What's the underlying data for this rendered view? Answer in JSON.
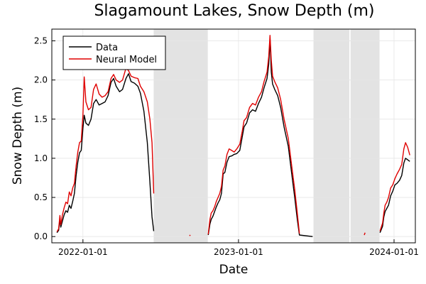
{
  "chart_data": {
    "type": "line",
    "title": "Slagamount Lakes, Snow Depth (m)",
    "xlabel": "Date",
    "ylabel": "Snow Depth (m)",
    "xlim": [
      "2021-10-20",
      "2024-02-20"
    ],
    "ylim": [
      -0.08,
      2.65
    ],
    "x_ticks": [
      "2022-01-01",
      "2023-01-01",
      "2024-01-01"
    ],
    "y_ticks": [
      "0.0",
      "0.5",
      "1.0",
      "1.5",
      "2.0",
      "2.5"
    ],
    "grid": true,
    "legend_position": "top-left",
    "shaded_regions": [
      [
        "2022-06-16",
        "2022-10-21"
      ],
      [
        "2023-06-26",
        "2023-09-18"
      ],
      [
        "2023-09-21",
        "2023-11-28"
      ]
    ],
    "series": [
      {
        "name": "Data",
        "color": "#000000",
        "segments": [
          [
            [
              "2021-11-01",
              0.05
            ],
            [
              "2021-11-05",
              0.08
            ],
            [
              "2021-11-08",
              0.22
            ],
            [
              "2021-11-10",
              0.12
            ],
            [
              "2021-11-14",
              0.2
            ],
            [
              "2021-11-18",
              0.28
            ],
            [
              "2021-11-22",
              0.33
            ],
            [
              "2021-11-26",
              0.31
            ],
            [
              "2021-11-30",
              0.4
            ],
            [
              "2021-12-04",
              0.36
            ],
            [
              "2021-12-08",
              0.45
            ],
            [
              "2021-12-12",
              0.55
            ],
            [
              "2021-12-16",
              0.78
            ],
            [
              "2021-12-20",
              0.95
            ],
            [
              "2021-12-24",
              1.07
            ],
            [
              "2021-12-28",
              1.1
            ],
            [
              "2022-01-01",
              1.38
            ],
            [
              "2022-01-04",
              1.55
            ],
            [
              "2022-01-08",
              1.45
            ],
            [
              "2022-01-14",
              1.42
            ],
            [
              "2022-01-20",
              1.5
            ],
            [
              "2022-01-26",
              1.7
            ],
            [
              "2022-02-01",
              1.75
            ],
            [
              "2022-02-08",
              1.68
            ],
            [
              "2022-02-15",
              1.7
            ],
            [
              "2022-02-22",
              1.72
            ],
            [
              "2022-03-01",
              1.8
            ],
            [
              "2022-03-08",
              1.97
            ],
            [
              "2022-03-14",
              2.02
            ],
            [
              "2022-03-20",
              1.92
            ],
            [
              "2022-03-28",
              1.85
            ],
            [
              "2022-04-04",
              1.88
            ],
            [
              "2022-04-12",
              2.02
            ],
            [
              "2022-04-18",
              2.08
            ],
            [
              "2022-04-24",
              1.98
            ],
            [
              "2022-05-02",
              1.96
            ],
            [
              "2022-05-10",
              1.92
            ],
            [
              "2022-05-16",
              1.83
            ],
            [
              "2022-05-24",
              1.6
            ],
            [
              "2022-06-01",
              1.2
            ],
            [
              "2022-06-07",
              0.7
            ],
            [
              "2022-06-12",
              0.25
            ],
            [
              "2022-06-16",
              0.07
            ]
          ],
          [
            [
              "2022-10-22",
              0.02
            ],
            [
              "2022-10-26",
              0.16
            ],
            [
              "2022-10-29",
              0.22
            ],
            [
              "2022-11-02",
              0.26
            ],
            [
              "2022-11-06",
              0.32
            ],
            [
              "2022-11-10",
              0.38
            ],
            [
              "2022-11-14",
              0.43
            ],
            [
              "2022-11-18",
              0.47
            ],
            [
              "2022-11-22",
              0.55
            ],
            [
              "2022-11-26",
              0.8
            ],
            [
              "2022-11-30",
              0.82
            ],
            [
              "2022-12-05",
              0.95
            ],
            [
              "2022-12-10",
              1.02
            ],
            [
              "2022-12-16",
              1.03
            ],
            [
              "2022-12-22",
              1.05
            ],
            [
              "2022-12-28",
              1.06
            ],
            [
              "2023-01-04",
              1.1
            ],
            [
              "2023-01-10",
              1.28
            ],
            [
              "2023-01-14",
              1.4
            ],
            [
              "2023-01-20",
              1.45
            ],
            [
              "2023-01-27",
              1.58
            ],
            [
              "2023-02-03",
              1.62
            ],
            [
              "2023-02-10",
              1.6
            ],
            [
              "2023-02-17",
              1.7
            ],
            [
              "2023-02-24",
              1.78
            ],
            [
              "2023-03-02",
              1.9
            ],
            [
              "2023-03-09",
              2.02
            ],
            [
              "2023-03-13",
              2.2
            ],
            [
              "2023-03-16",
              2.52
            ],
            [
              "2023-03-19",
              2.1
            ],
            [
              "2023-03-22",
              1.95
            ],
            [
              "2023-03-27",
              1.88
            ],
            [
              "2023-04-03",
              1.8
            ],
            [
              "2023-04-10",
              1.65
            ],
            [
              "2023-04-18",
              1.4
            ],
            [
              "2023-04-28",
              1.15
            ],
            [
              "2023-05-06",
              0.8
            ],
            [
              "2023-05-13",
              0.5
            ],
            [
              "2023-05-19",
              0.22
            ],
            [
              "2023-05-24",
              0.02
            ],
            [
              "2023-06-24",
              0.0
            ]
          ],
          [
            [
              "2023-11-29",
              0.05
            ],
            [
              "2023-12-02",
              0.09
            ],
            [
              "2023-12-05",
              0.13
            ],
            [
              "2023-12-08",
              0.25
            ],
            [
              "2023-12-11",
              0.32
            ],
            [
              "2023-12-15",
              0.36
            ],
            [
              "2023-12-19",
              0.4
            ],
            [
              "2023-12-24",
              0.52
            ],
            [
              "2023-12-29",
              0.58
            ],
            [
              "2024-01-03",
              0.66
            ],
            [
              "2024-01-08",
              0.68
            ],
            [
              "2024-01-14",
              0.72
            ],
            [
              "2024-01-19",
              0.78
            ],
            [
              "2024-01-24",
              0.94
            ],
            [
              "2024-01-28",
              1.0
            ],
            [
              "2024-02-02",
              0.98
            ],
            [
              "2024-02-07",
              0.96
            ]
          ]
        ]
      },
      {
        "name": "Neural Model",
        "color": "#e00000",
        "segments": [
          [
            [
              "2021-11-01",
              0.06
            ],
            [
              "2021-11-05",
              0.1
            ],
            [
              "2021-11-08",
              0.27
            ],
            [
              "2021-11-10",
              0.15
            ],
            [
              "2021-11-14",
              0.28
            ],
            [
              "2021-11-18",
              0.37
            ],
            [
              "2021-11-22",
              0.44
            ],
            [
              "2021-11-26",
              0.42
            ],
            [
              "2021-11-30",
              0.57
            ],
            [
              "2021-12-04",
              0.52
            ],
            [
              "2021-12-08",
              0.62
            ],
            [
              "2021-12-12",
              0.68
            ],
            [
              "2021-12-16",
              0.9
            ],
            [
              "2021-12-20",
              1.08
            ],
            [
              "2021-12-24",
              1.2
            ],
            [
              "2021-12-28",
              1.22
            ],
            [
              "2022-01-01",
              1.55
            ],
            [
              "2022-01-04",
              2.04
            ],
            [
              "2022-01-08",
              1.72
            ],
            [
              "2022-01-14",
              1.62
            ],
            [
              "2022-01-20",
              1.65
            ],
            [
              "2022-01-26",
              1.88
            ],
            [
              "2022-02-01",
              1.95
            ],
            [
              "2022-02-08",
              1.82
            ],
            [
              "2022-02-15",
              1.78
            ],
            [
              "2022-02-22",
              1.8
            ],
            [
              "2022-03-01",
              1.85
            ],
            [
              "2022-03-08",
              2.02
            ],
            [
              "2022-03-14",
              2.07
            ],
            [
              "2022-03-20",
              2.0
            ],
            [
              "2022-03-28",
              1.97
            ],
            [
              "2022-04-04",
              2.0
            ],
            [
              "2022-04-12",
              2.15
            ],
            [
              "2022-04-18",
              2.12
            ],
            [
              "2022-04-24",
              2.05
            ],
            [
              "2022-05-02",
              2.03
            ],
            [
              "2022-05-10",
              2.02
            ],
            [
              "2022-05-16",
              1.92
            ],
            [
              "2022-05-24",
              1.85
            ],
            [
              "2022-06-01",
              1.72
            ],
            [
              "2022-06-07",
              1.5
            ],
            [
              "2022-06-12",
              1.2
            ],
            [
              "2022-06-16",
              0.55
            ]
          ],
          [
            [
              "2022-10-22",
              0.03
            ],
            [
              "2022-10-26",
              0.22
            ],
            [
              "2022-10-29",
              0.3
            ],
            [
              "2022-11-02",
              0.33
            ],
            [
              "2022-11-06",
              0.38
            ],
            [
              "2022-11-10",
              0.45
            ],
            [
              "2022-11-14",
              0.5
            ],
            [
              "2022-11-18",
              0.55
            ],
            [
              "2022-11-22",
              0.64
            ],
            [
              "2022-11-26",
              0.85
            ],
            [
              "2022-11-30",
              0.9
            ],
            [
              "2022-12-05",
              1.05
            ],
            [
              "2022-12-10",
              1.12
            ],
            [
              "2022-12-16",
              1.1
            ],
            [
              "2022-12-22",
              1.08
            ],
            [
              "2022-12-28",
              1.12
            ],
            [
              "2023-01-04",
              1.18
            ],
            [
              "2023-01-10",
              1.35
            ],
            [
              "2023-01-14",
              1.48
            ],
            [
              "2023-01-20",
              1.52
            ],
            [
              "2023-01-27",
              1.65
            ],
            [
              "2023-02-03",
              1.7
            ],
            [
              "2023-02-10",
              1.68
            ],
            [
              "2023-02-17",
              1.78
            ],
            [
              "2023-02-24",
              1.85
            ],
            [
              "2023-03-02",
              1.98
            ],
            [
              "2023-03-09",
              2.1
            ],
            [
              "2023-03-13",
              2.3
            ],
            [
              "2023-03-16",
              2.57
            ],
            [
              "2023-03-19",
              2.25
            ],
            [
              "2023-03-22",
              2.05
            ],
            [
              "2023-03-27",
              1.98
            ],
            [
              "2023-04-03",
              1.9
            ],
            [
              "2023-04-10",
              1.75
            ],
            [
              "2023-04-18",
              1.5
            ],
            [
              "2023-04-28",
              1.25
            ],
            [
              "2023-05-06",
              0.9
            ],
            [
              "2023-05-13",
              0.6
            ],
            [
              "2023-05-19",
              0.3
            ],
            [
              "2023-05-24",
              0.04
            ]
          ],
          [
            [
              "2022-09-08",
              0.01
            ],
            [
              "2022-09-10",
              0.02
            ]
          ],
          [
            [
              "2023-10-23",
              0.02
            ],
            [
              "2023-10-25",
              0.05
            ]
          ],
          [
            [
              "2023-11-29",
              0.07
            ],
            [
              "2023-12-02",
              0.12
            ],
            [
              "2023-12-05",
              0.17
            ],
            [
              "2023-12-08",
              0.3
            ],
            [
              "2023-12-11",
              0.4
            ],
            [
              "2023-12-15",
              0.44
            ],
            [
              "2023-12-19",
              0.5
            ],
            [
              "2023-12-24",
              0.62
            ],
            [
              "2023-12-29",
              0.66
            ],
            [
              "2024-01-03",
              0.74
            ],
            [
              "2024-01-08",
              0.8
            ],
            [
              "2024-01-14",
              0.86
            ],
            [
              "2024-01-19",
              0.92
            ],
            [
              "2024-01-24",
              1.12
            ],
            [
              "2024-01-28",
              1.2
            ],
            [
              "2024-02-02",
              1.14
            ],
            [
              "2024-02-07",
              1.04
            ]
          ]
        ]
      }
    ]
  }
}
